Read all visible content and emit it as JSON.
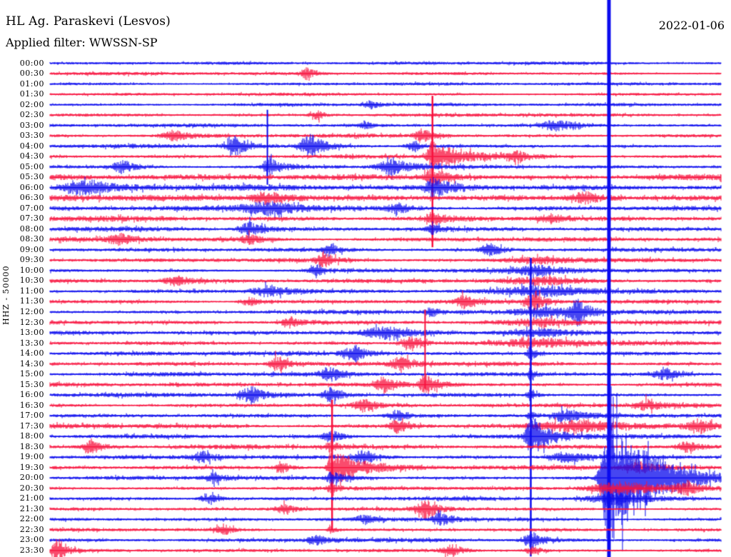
{
  "header": {
    "station": "HL Ag. Paraskevi (Lesvos)",
    "filter_line": "Applied filter: WWSSN-SP",
    "date": "2022-01-06"
  },
  "left_axis": {
    "channel_label": "HHZ - 50000"
  },
  "colors": {
    "trace_blue": "#0A0AEE",
    "trace_red": "#F8123E",
    "text": "#000000",
    "background": "#FFFFFF"
  },
  "chart_data": {
    "type": "helicorder",
    "title": "HL Ag. Paraskevi (Lesvos)",
    "subtitle": "Applied filter: WWSSN-SP",
    "date": "2022-01-06",
    "y_axis_label": "HHZ - 50000",
    "row_duration_minutes": 30,
    "legend": "48 rows, 30 minutes each; :00 rows blue, :30 rows red; f = fraction of row width, a = amplitude px, line = clipped vertical excursion",
    "rows": [
      {
        "time": "00:00",
        "noise": 2.6,
        "events": []
      },
      {
        "time": "00:30",
        "noise": 2.6,
        "events": [
          {
            "f": 0.382,
            "a": 8,
            "r": 6,
            "d": 12
          }
        ]
      },
      {
        "time": "01:00",
        "noise": 2.6,
        "events": []
      },
      {
        "time": "01:30",
        "noise": 2.6,
        "events": []
      },
      {
        "time": "02:00",
        "noise": 2.7,
        "events": [
          {
            "f": 0.48,
            "a": 5,
            "r": 8,
            "d": 10
          }
        ]
      },
      {
        "time": "02:30",
        "noise": 2.8,
        "events": [
          {
            "f": 0.4,
            "a": 6,
            "r": 8,
            "d": 10
          }
        ]
      },
      {
        "time": "03:00",
        "noise": 2.8,
        "events": [
          {
            "f": 0.47,
            "a": 6,
            "r": 6,
            "d": 8
          },
          {
            "f": 0.757,
            "a": 7,
            "r": 15,
            "d": 25
          }
        ]
      },
      {
        "time": "03:30",
        "noise": 3.0,
        "events": [
          {
            "f": 0.186,
            "a": 7,
            "r": 12,
            "d": 18
          },
          {
            "f": 0.556,
            "a": 9,
            "r": 8,
            "d": 14
          }
        ]
      },
      {
        "time": "04:00",
        "noise": 3.0,
        "events": [
          {
            "f": 0.278,
            "a": 13,
            "r": 10,
            "d": 16
          },
          {
            "f": 0.39,
            "a": 16,
            "r": 10,
            "d": 20
          },
          {
            "f": 0.545,
            "a": 7,
            "r": 8,
            "d": 10
          }
        ]
      },
      {
        "time": "04:30",
        "noise": 3.0,
        "events": [
          {
            "f": 0.57,
            "a": 20,
            "r": 5,
            "d": 40,
            "line": {
              "up": 85,
              "down": 127,
              "w": 2.5
            }
          },
          {
            "f": 0.7,
            "a": 6,
            "r": 10,
            "d": 15
          }
        ]
      },
      {
        "time": "05:00",
        "noise": 3.2,
        "events": [
          {
            "f": 0.324,
            "a": 13,
            "r": 4,
            "d": 18,
            "line": {
              "up": 80,
              "down": 25,
              "w": 2
            }
          },
          {
            "f": 0.111,
            "a": 9,
            "r": 10,
            "d": 15
          },
          {
            "f": 0.51,
            "a": 12,
            "r": 12,
            "d": 20
          }
        ]
      },
      {
        "time": "05:30",
        "noise": 4.8,
        "events": [
          {
            "f": 0.57,
            "a": 12,
            "r": 8,
            "d": 25
          }
        ]
      },
      {
        "time": "06:00",
        "noise": 4.5,
        "events": [
          {
            "f": 0.57,
            "a": 13,
            "r": 6,
            "d": 30
          },
          {
            "f": 0.05,
            "a": 9,
            "r": 20,
            "d": 40
          }
        ]
      },
      {
        "time": "06:30",
        "noise": 4.8,
        "events": [
          {
            "f": 0.33,
            "a": 8,
            "r": 20,
            "d": 30
          },
          {
            "f": 0.8,
            "a": 8,
            "r": 15,
            "d": 25
          }
        ]
      },
      {
        "time": "07:00",
        "noise": 4.2,
        "events": [
          {
            "f": 0.33,
            "a": 8,
            "r": 25,
            "d": 40
          },
          {
            "f": 0.52,
            "a": 7,
            "r": 10,
            "d": 15
          }
        ]
      },
      {
        "time": "07:30",
        "noise": 4.2,
        "events": [
          {
            "f": 0.57,
            "a": 8,
            "r": 6,
            "d": 20
          },
          {
            "f": 0.75,
            "a": 6,
            "r": 15,
            "d": 20
          }
        ]
      },
      {
        "time": "08:00",
        "noise": 3.8,
        "events": [
          {
            "f": 0.3,
            "a": 9,
            "r": 12,
            "d": 20
          },
          {
            "f": 0.57,
            "a": 6,
            "r": 5,
            "d": 12
          }
        ]
      },
      {
        "time": "08:30",
        "noise": 3.8,
        "events": [
          {
            "f": 0.105,
            "a": 7,
            "r": 10,
            "d": 15
          },
          {
            "f": 0.3,
            "a": 6,
            "r": 10,
            "d": 15
          }
        ]
      },
      {
        "time": "09:00",
        "noise": 3.4,
        "events": [
          {
            "f": 0.658,
            "a": 9,
            "r": 10,
            "d": 15
          },
          {
            "f": 0.42,
            "a": 6,
            "r": 8,
            "d": 12
          }
        ]
      },
      {
        "time": "09:30",
        "noise": 3.2,
        "events": [
          {
            "f": 0.41,
            "a": 9,
            "r": 8,
            "d": 14
          },
          {
            "f": 0.74,
            "a": 5,
            "r": 40,
            "d": 60
          }
        ]
      },
      {
        "time": "10:00",
        "noise": 3.2,
        "events": [
          {
            "f": 0.4,
            "a": 7,
            "r": 8,
            "d": 12
          },
          {
            "f": 0.73,
            "a": 6,
            "r": 30,
            "d": 50
          }
        ]
      },
      {
        "time": "10:30",
        "noise": 3.2,
        "events": [
          {
            "f": 0.19,
            "a": 6,
            "r": 12,
            "d": 18
          },
          {
            "f": 0.74,
            "a": 5,
            "r": 40,
            "d": 60
          }
        ]
      },
      {
        "time": "11:00",
        "noise": 3.3,
        "events": [
          {
            "f": 0.33,
            "a": 8,
            "r": 18,
            "d": 30
          },
          {
            "f": 0.74,
            "a": 6,
            "r": 40,
            "d": 60
          }
        ]
      },
      {
        "time": "11:30",
        "noise": 3.4,
        "events": [
          {
            "f": 0.723,
            "a": 16,
            "r": 8,
            "d": 12
          },
          {
            "f": 0.62,
            "a": 8,
            "r": 10,
            "d": 15
          },
          {
            "f": 0.3,
            "a": 6,
            "r": 10,
            "d": 15
          }
        ]
      },
      {
        "time": "12:00",
        "noise": 3.4,
        "events": [
          {
            "f": 0.787,
            "a": 15,
            "r": 10,
            "d": 18
          },
          {
            "f": 0.57,
            "a": 6,
            "r": 6,
            "d": 10
          },
          {
            "f": 0.74,
            "a": 6,
            "r": 30,
            "d": 40
          }
        ]
      },
      {
        "time": "12:30",
        "noise": 3.4,
        "events": [
          {
            "f": 0.36,
            "a": 7,
            "r": 10,
            "d": 15
          },
          {
            "f": 0.74,
            "a": 5,
            "r": 40,
            "d": 60
          }
        ]
      },
      {
        "time": "13:00",
        "noise": 3.4,
        "events": [
          {
            "f": 0.5,
            "a": 7,
            "r": 20,
            "d": 30
          },
          {
            "f": 0.74,
            "a": 5,
            "r": 40,
            "d": 60
          }
        ]
      },
      {
        "time": "13:30",
        "noise": 3.4,
        "events": [
          {
            "f": 0.54,
            "a": 9,
            "r": 10,
            "d": 15
          },
          {
            "f": 0.74,
            "a": 5,
            "r": 40,
            "d": 60
          }
        ]
      },
      {
        "time": "14:00",
        "noise": 3.4,
        "events": [
          {
            "f": 0.455,
            "a": 10,
            "r": 12,
            "d": 18
          },
          {
            "f": 0.717,
            "a": 10,
            "r": 4,
            "d": 8
          }
        ]
      },
      {
        "time": "14:30",
        "noise": 3.4,
        "events": [
          {
            "f": 0.34,
            "a": 11,
            "r": 8,
            "d": 14
          },
          {
            "f": 0.524,
            "a": 10,
            "r": 10,
            "d": 16
          }
        ]
      },
      {
        "time": "15:00",
        "noise": 3.4,
        "events": [
          {
            "f": 0.42,
            "a": 9,
            "r": 10,
            "d": 15
          },
          {
            "f": 0.92,
            "a": 7,
            "r": 12,
            "d": 18
          },
          {
            "f": 0.717,
            "a": 8,
            "r": 3,
            "d": 6
          }
        ]
      },
      {
        "time": "15:30",
        "noise": 3.4,
        "events": [
          {
            "f": 0.5,
            "a": 12,
            "r": 8,
            "d": 14
          },
          {
            "f": 0.559,
            "a": 14,
            "r": 5,
            "d": 20,
            "line": {
              "up": 105,
              "down": 6,
              "w": 2
            }
          }
        ]
      },
      {
        "time": "16:00",
        "noise": 3.4,
        "events": [
          {
            "f": 0.3,
            "a": 12,
            "r": 10,
            "d": 16
          },
          {
            "f": 0.42,
            "a": 10,
            "r": 8,
            "d": 14
          },
          {
            "f": 0.717,
            "a": 9,
            "r": 3,
            "d": 6
          }
        ]
      },
      {
        "time": "16:30",
        "noise": 3.4,
        "events": [
          {
            "f": 0.47,
            "a": 8,
            "r": 10,
            "d": 14
          },
          {
            "f": 0.89,
            "a": 7,
            "r": 10,
            "d": 16
          }
        ]
      },
      {
        "time": "17:00",
        "noise": 3.4,
        "events": [
          {
            "f": 0.52,
            "a": 8,
            "r": 10,
            "d": 14
          },
          {
            "f": 0.77,
            "a": 8,
            "r": 12,
            "d": 20
          },
          {
            "f": 0.717,
            "a": 10,
            "r": 3,
            "d": 6
          }
        ]
      },
      {
        "time": "17:30",
        "noise": 3.8,
        "events": [
          {
            "f": 0.52,
            "a": 9,
            "r": 8,
            "d": 14
          },
          {
            "f": 0.8,
            "a": 8,
            "r": 40,
            "d": 60
          },
          {
            "f": 0.97,
            "a": 8,
            "r": 10,
            "d": 15
          }
        ]
      },
      {
        "time": "18:00",
        "noise": 3.5,
        "events": [
          {
            "f": 0.7165,
            "a": 30,
            "r": 5,
            "d": 25,
            "line": {
              "up": 250,
              "down": 168,
              "w": 2.5
            }
          },
          {
            "f": 0.42,
            "a": 8,
            "r": 8,
            "d": 14
          }
        ]
      },
      {
        "time": "18:30",
        "noise": 3.5,
        "events": [
          {
            "f": 0.063,
            "a": 10,
            "r": 8,
            "d": 14
          },
          {
            "f": 0.42,
            "a": 7,
            "r": 6,
            "d": 10
          },
          {
            "f": 0.95,
            "a": 7,
            "r": 10,
            "d": 15
          }
        ]
      },
      {
        "time": "19:00",
        "noise": 3.5,
        "events": [
          {
            "f": 0.23,
            "a": 8,
            "r": 10,
            "d": 14
          },
          {
            "f": 0.47,
            "a": 10,
            "r": 12,
            "d": 18
          },
          {
            "f": 0.77,
            "a": 7,
            "r": 15,
            "d": 25
          }
        ]
      },
      {
        "time": "19:30",
        "noise": 3.5,
        "events": [
          {
            "f": 0.4204,
            "a": 26,
            "r": 4,
            "d": 40,
            "line": {
              "up": 95,
              "down": 88,
              "w": 2.5
            }
          },
          {
            "f": 0.345,
            "a": 10,
            "r": 6,
            "d": 10
          },
          {
            "f": 0.88,
            "a": 7,
            "r": 15,
            "d": 25
          }
        ]
      },
      {
        "time": "20:00",
        "noise": 3.2,
        "events": [
          {
            "f": 0.833,
            "a": 95,
            "r": 7,
            "d": 55,
            "line": {
              "up": 670,
              "down": 111,
              "w": 5
            }
          },
          {
            "f": 0.245,
            "a": 7,
            "r": 8,
            "d": 12
          },
          {
            "f": 0.42,
            "a": 8,
            "r": 5,
            "d": 25
          }
        ]
      },
      {
        "time": "20:30",
        "noise": 3.0,
        "events": [
          {
            "f": 0.85,
            "a": 9,
            "r": 30,
            "d": 60
          },
          {
            "f": 0.95,
            "a": 8,
            "r": 10,
            "d": 16
          },
          {
            "f": 0.42,
            "a": 6,
            "r": 4,
            "d": 8
          }
        ]
      },
      {
        "time": "21:00",
        "noise": 3.0,
        "events": [
          {
            "f": 0.24,
            "a": 6,
            "r": 10,
            "d": 15
          },
          {
            "f": 0.85,
            "a": 7,
            "r": 30,
            "d": 50
          }
        ]
      },
      {
        "time": "21:30",
        "noise": 2.8,
        "events": [
          {
            "f": 0.56,
            "a": 13,
            "r": 8,
            "d": 16
          },
          {
            "f": 0.35,
            "a": 6,
            "r": 10,
            "d": 15
          }
        ]
      },
      {
        "time": "22:00",
        "noise": 3.0,
        "events": [
          {
            "f": 0.585,
            "a": 8,
            "r": 10,
            "d": 16
          },
          {
            "f": 0.47,
            "a": 6,
            "r": 8,
            "d": 12
          }
        ]
      },
      {
        "time": "22:30",
        "noise": 2.8,
        "events": [
          {
            "f": 0.26,
            "a": 7,
            "r": 8,
            "d": 12
          },
          {
            "f": 0.42,
            "a": 5,
            "r": 4,
            "d": 8
          }
        ]
      },
      {
        "time": "23:00",
        "noise": 3.0,
        "events": [
          {
            "f": 0.72,
            "a": 10,
            "r": 10,
            "d": 16
          },
          {
            "f": 0.4,
            "a": 6,
            "r": 10,
            "d": 14
          }
        ]
      },
      {
        "time": "23:30",
        "noise": 2.8,
        "events": [
          {
            "f": 0.0085,
            "a": 24,
            "r": 3,
            "d": 10
          },
          {
            "f": 0.6,
            "a": 8,
            "r": 10,
            "d": 15
          },
          {
            "f": 0.72,
            "a": 7,
            "r": 6,
            "d": 10
          }
        ]
      }
    ]
  }
}
